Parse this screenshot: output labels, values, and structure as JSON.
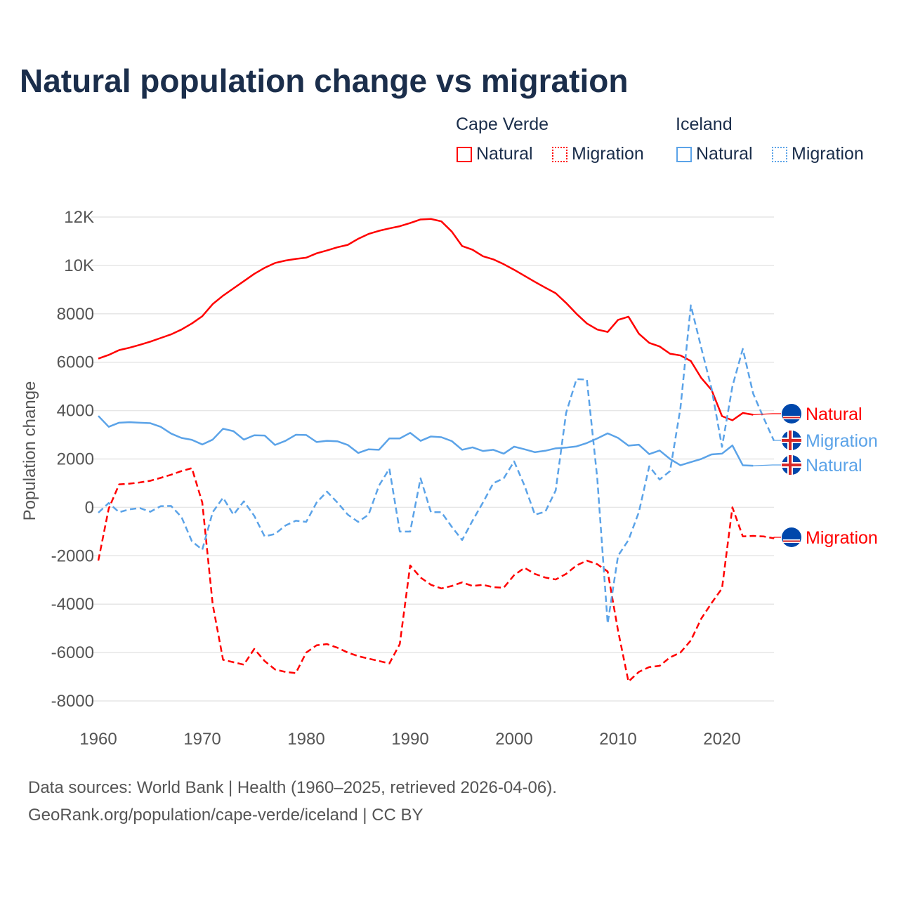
{
  "title": "Natural population change vs migration",
  "legend": {
    "groups": [
      {
        "name": "Cape Verde",
        "items": [
          "Natural",
          "Migration"
        ]
      },
      {
        "name": "Iceland",
        "items": [
          "Natural",
          "Migration"
        ]
      }
    ]
  },
  "footer": {
    "line1": "Data sources: World Bank | Health (1960–2025, retrieved 2026-04-06).",
    "line2": "GeoRank.org/population/cape-verde/iceland | CC BY"
  },
  "chart_data": {
    "type": "line",
    "title": "Natural population change vs migration",
    "ylabel": "Population change",
    "xlabel": "",
    "xlim": [
      1960,
      2025
    ],
    "ylim": [
      -8000,
      12000
    ],
    "xticks": [
      1960,
      1970,
      1980,
      1990,
      2000,
      2010,
      2020
    ],
    "xtick_labels": [
      "1960",
      "1970",
      "1980",
      "1990",
      "2000",
      "2010",
      "2020"
    ],
    "yticks": [
      -8000,
      -6000,
      -4000,
      -2000,
      0,
      2000,
      4000,
      6000,
      8000,
      10000,
      12000
    ],
    "ytick_labels": [
      "-8000",
      "-6000",
      "-4000",
      "-2000",
      "0",
      "2000",
      "4000",
      "6000",
      "8000",
      "10K",
      "12K"
    ],
    "grid": true,
    "legend_position": "top-right",
    "x_start": 1960,
    "series": [
      {
        "name": "Natural",
        "country": "Cape Verde",
        "color": "#ff0000",
        "dash": false,
        "end_label": "Natural",
        "values": [
          6150,
          6300,
          6500,
          6600,
          6720,
          6850,
          7000,
          7150,
          7350,
          7600,
          7900,
          8400,
          8750,
          9050,
          9350,
          9650,
          9900,
          10100,
          10200,
          10270,
          10320,
          10500,
          10620,
          10750,
          10850,
          11100,
          11300,
          11430,
          11530,
          11620,
          11750,
          11900,
          11920,
          11820,
          11400,
          10800,
          10650,
          10380,
          10250,
          10050,
          9820,
          9570,
          9320,
          9080,
          8850,
          8450,
          8000,
          7600,
          7350,
          7250,
          7750,
          7880,
          7180,
          6800,
          6650,
          6350,
          6280,
          6050,
          5350,
          4850,
          3770,
          3600,
          3900,
          3830
        ]
      },
      {
        "name": "Migration",
        "country": "Cape Verde",
        "color": "#ff0000",
        "dash": true,
        "end_label": "Migration",
        "values": [
          -2200,
          -50,
          950,
          980,
          1030,
          1100,
          1220,
          1350,
          1500,
          1620,
          200,
          -4000,
          -6300,
          -6400,
          -6500,
          -5850,
          -6350,
          -6700,
          -6800,
          -6850,
          -6000,
          -5700,
          -5650,
          -5800,
          -6000,
          -6150,
          -6250,
          -6350,
          -6450,
          -5650,
          -2400,
          -2900,
          -3200,
          -3350,
          -3250,
          -3100,
          -3250,
          -3200,
          -3300,
          -3320,
          -2800,
          -2500,
          -2750,
          -2900,
          -2980,
          -2750,
          -2400,
          -2200,
          -2350,
          -2650,
          -5100,
          -7200,
          -6800,
          -6600,
          -6550,
          -6200,
          -6000,
          -5500,
          -4600,
          -3950,
          -3350,
          0,
          -1200,
          -1180,
          -1200,
          -1280
        ]
      },
      {
        "name": "Natural",
        "country": "Iceland",
        "color": "#5ba3e8",
        "dash": false,
        "end_label": "Natural",
        "values": [
          3780,
          3330,
          3500,
          3520,
          3500,
          3480,
          3330,
          3050,
          2870,
          2790,
          2600,
          2800,
          3250,
          3150,
          2800,
          2980,
          2970,
          2580,
          2750,
          3000,
          2990,
          2700,
          2750,
          2730,
          2580,
          2250,
          2400,
          2380,
          2850,
          2850,
          3080,
          2750,
          2930,
          2900,
          2740,
          2380,
          2480,
          2330,
          2380,
          2220,
          2510,
          2400,
          2280,
          2340,
          2440,
          2470,
          2520,
          2660,
          2850,
          3060,
          2870,
          2550,
          2590,
          2200,
          2350,
          2000,
          1740,
          1870,
          2000,
          2190,
          2220,
          2560,
          1740,
          1720
        ]
      },
      {
        "name": "Migration",
        "country": "Iceland",
        "color": "#5ba3e8",
        "dash": true,
        "end_label": "Migration",
        "values": [
          -220,
          180,
          -200,
          -80,
          -30,
          -180,
          50,
          60,
          -400,
          -1400,
          -1750,
          -200,
          400,
          -300,
          250,
          -350,
          -1200,
          -1100,
          -750,
          -550,
          -600,
          200,
          650,
          200,
          -300,
          -600,
          -300,
          900,
          1600,
          -1000,
          -1000,
          1200,
          -200,
          -200,
          -800,
          -1350,
          -550,
          200,
          1000,
          1200,
          1900,
          900,
          -300,
          -180,
          700,
          3900,
          5300,
          5280,
          1200,
          -4800,
          -2000,
          -1350,
          -200,
          1700,
          1150,
          1500,
          4100,
          8350,
          6600,
          4900,
          2500,
          5000,
          6550,
          4700,
          3700,
          2750
        ]
      }
    ]
  }
}
